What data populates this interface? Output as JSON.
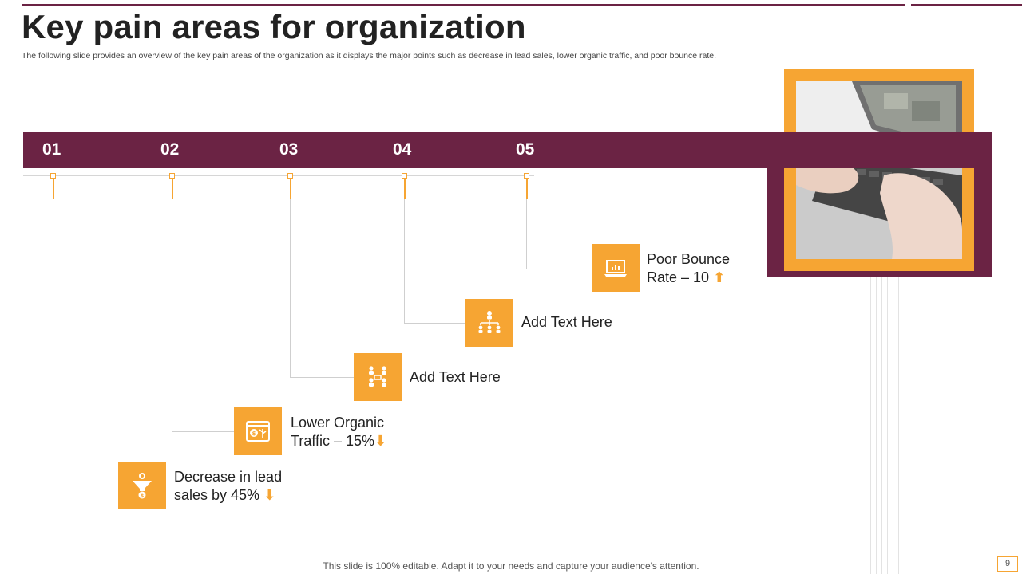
{
  "header": {
    "title": "Key pain areas for organization",
    "subtitle": "The following slide provides an overview of the key pain areas of the organization as it displays the major points such as decrease in lead sales, lower organic traffic, and poor bounce rate."
  },
  "steps": [
    {
      "number": "01",
      "line1": "Decrease in lead",
      "line2": "sales by 45%",
      "arrow": "⬇",
      "icon": "funnel-dollar-icon"
    },
    {
      "number": "02",
      "line1": "Lower Organic",
      "line2": "Traffic – 15%",
      "arrow": "⬇",
      "icon": "dollar-growth-screen-icon"
    },
    {
      "number": "03",
      "line1": "Add Text Here",
      "line2": "",
      "arrow": "",
      "icon": "team-meeting-icon"
    },
    {
      "number": "04",
      "line1": "Add Text Here",
      "line2": "",
      "arrow": "",
      "icon": "org-chart-icon"
    },
    {
      "number": "05",
      "line1": "Poor Bounce",
      "line2": "Rate – 10",
      "arrow": "⬆",
      "icon": "laptop-chart-icon"
    }
  ],
  "footer": {
    "note": "This slide is 100% editable. Adapt it to your needs and capture your audience's attention.",
    "page": "9"
  },
  "colors": {
    "accent": "#f6a533",
    "brand": "#6b2344"
  }
}
